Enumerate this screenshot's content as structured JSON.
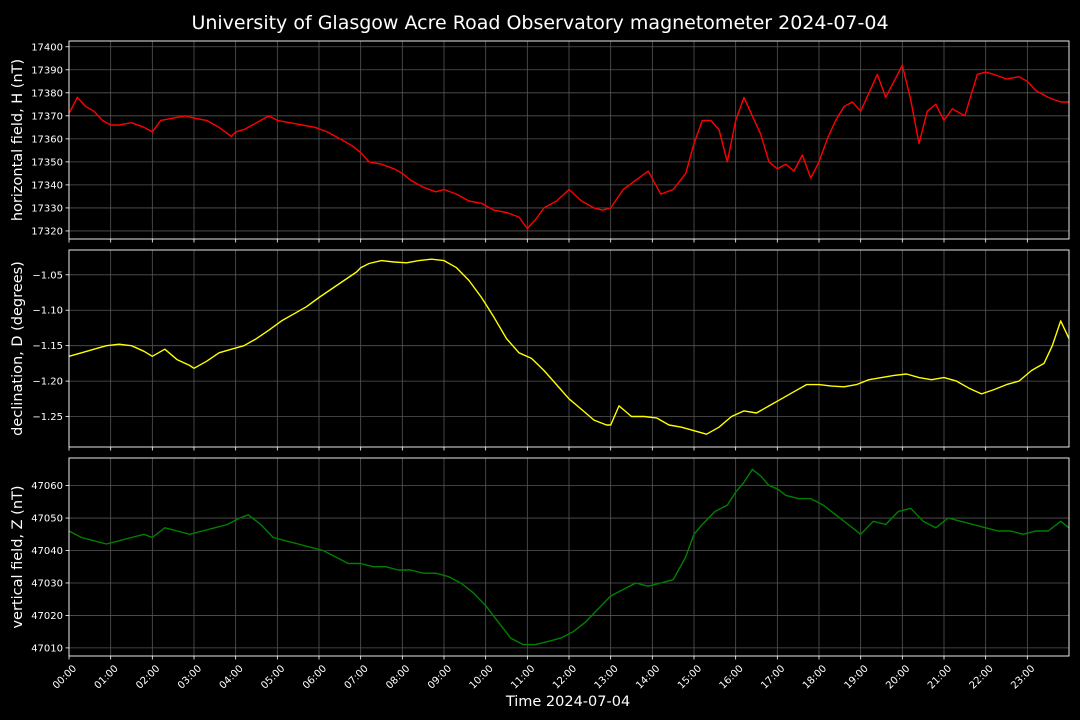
{
  "chart_data": {
    "type": "line",
    "title": "University of Glasgow Acre Road Observatory magnetometer 2024-07-04",
    "xlabel": "Time 2024-07-04",
    "x_ticks": [
      "00:00",
      "01:00",
      "02:00",
      "03:00",
      "04:00",
      "05:00",
      "06:00",
      "07:00",
      "08:00",
      "09:00",
      "10:00",
      "11:00",
      "12:00",
      "13:00",
      "14:00",
      "15:00",
      "16:00",
      "17:00",
      "18:00",
      "19:00",
      "20:00",
      "21:00",
      "22:00",
      "23:00"
    ],
    "xlim": [
      0,
      24
    ],
    "grid": true,
    "panels": [
      {
        "name": "horizontal field, H (nT)",
        "ylabel": "horizontal field, H (nT)",
        "color": "#ff0000",
        "ylim": [
          17316.5,
          17402.5
        ],
        "yticks": [
          17320,
          17330,
          17340,
          17350,
          17360,
          17370,
          17380,
          17390,
          17400
        ],
        "tick_labels": [
          "17320",
          "17330",
          "17340",
          "17350",
          "17360",
          "17370",
          "17380",
          "17390",
          "17400"
        ],
        "x": [
          0,
          0.2,
          0.4,
          0.6,
          0.8,
          1.0,
          1.2,
          1.5,
          1.8,
          2.0,
          2.2,
          2.5,
          2.8,
          3.0,
          3.3,
          3.6,
          3.9,
          4.0,
          4.2,
          4.5,
          4.8,
          5.0,
          5.3,
          5.6,
          5.9,
          6.2,
          6.5,
          6.8,
          7.0,
          7.2,
          7.5,
          7.8,
          8.0,
          8.2,
          8.5,
          8.8,
          9.0,
          9.3,
          9.6,
          9.9,
          10.2,
          10.5,
          10.8,
          11.0,
          11.2,
          11.4,
          11.7,
          12.0,
          12.3,
          12.6,
          12.8,
          13.0,
          13.3,
          13.6,
          13.9,
          14.2,
          14.5,
          14.8,
          15.0,
          15.2,
          15.4,
          15.6,
          15.8,
          16.0,
          16.2,
          16.4,
          16.6,
          16.8,
          17.0,
          17.2,
          17.4,
          17.6,
          17.8,
          18.0,
          18.2,
          18.4,
          18.6,
          18.8,
          19.0,
          19.2,
          19.4,
          19.6,
          19.8,
          20.0,
          20.2,
          20.4,
          20.6,
          20.8,
          21.0,
          21.2,
          21.5,
          21.8,
          22.0,
          22.2,
          22.5,
          22.8,
          23.0,
          23.2,
          23.5,
          23.8,
          24.0
        ],
        "y": [
          17371,
          17378,
          17374,
          17372,
          17368,
          17366,
          17366,
          17367,
          17365,
          17363,
          17368,
          17369,
          17370,
          17369,
          17368,
          17365,
          17361,
          17363,
          17364,
          17367,
          17370,
          17368,
          17367,
          17366,
          17365,
          17363,
          17360,
          17357,
          17354,
          17350,
          17349,
          17347,
          17345,
          17342,
          17339,
          17337,
          17338,
          17336,
          17333,
          17332,
          17329,
          17328,
          17326,
          17321,
          17325,
          17330,
          17333,
          17338,
          17333,
          17330,
          17329,
          17330,
          17338,
          17342,
          17346,
          17336,
          17338,
          17345,
          17358,
          17368,
          17368,
          17364,
          17350,
          17368,
          17378,
          17370,
          17362,
          17350,
          17347,
          17349,
          17346,
          17353,
          17343,
          17350,
          17360,
          17368,
          17374,
          17376,
          17372,
          17380,
          17388,
          17378,
          17385,
          17392,
          17377,
          17358,
          17372,
          17375,
          17368,
          17373,
          17370,
          17388,
          17389,
          17388,
          17386,
          17387,
          17385,
          17381,
          17378,
          17376,
          17376
        ]
      },
      {
        "name": "declination, D (degrees)",
        "ylabel": "declination, D (degrees)",
        "color": "#ffff00",
        "ylim": [
          -1.293,
          -1.015
        ],
        "yticks": [
          -1.25,
          -1.2,
          -1.15,
          -1.1,
          -1.05
        ],
        "tick_labels": [
          "−1.25",
          "−1.20",
          "−1.15",
          "−1.10",
          "−1.05"
        ],
        "x": [
          0,
          0.3,
          0.6,
          0.9,
          1.2,
          1.5,
          1.8,
          2.0,
          2.3,
          2.6,
          2.9,
          3.0,
          3.3,
          3.6,
          3.9,
          4.2,
          4.5,
          4.8,
          5.1,
          5.4,
          5.7,
          6.0,
          6.3,
          6.6,
          6.9,
          7.0,
          7.2,
          7.5,
          7.8,
          8.1,
          8.4,
          8.7,
          9.0,
          9.3,
          9.6,
          9.9,
          10.2,
          10.5,
          10.8,
          11.1,
          11.4,
          11.7,
          12.0,
          12.3,
          12.6,
          12.9,
          13.0,
          13.2,
          13.5,
          13.8,
          14.1,
          14.4,
          14.7,
          15.0,
          15.3,
          15.6,
          15.9,
          16.2,
          16.5,
          16.8,
          17.1,
          17.4,
          17.7,
          18.0,
          18.3,
          18.6,
          18.9,
          19.2,
          19.5,
          19.8,
          20.1,
          20.4,
          20.7,
          21.0,
          21.3,
          21.6,
          21.9,
          22.2,
          22.5,
          22.8,
          23.1,
          23.4,
          23.6,
          23.8,
          24.0
        ],
        "y": [
          -1.165,
          -1.16,
          -1.155,
          -1.15,
          -1.148,
          -1.15,
          -1.158,
          -1.165,
          -1.155,
          -1.17,
          -1.178,
          -1.182,
          -1.172,
          -1.16,
          -1.155,
          -1.15,
          -1.14,
          -1.128,
          -1.115,
          -1.105,
          -1.095,
          -1.082,
          -1.07,
          -1.058,
          -1.046,
          -1.04,
          -1.034,
          -1.03,
          -1.032,
          -1.033,
          -1.03,
          -1.028,
          -1.03,
          -1.04,
          -1.058,
          -1.082,
          -1.11,
          -1.14,
          -1.16,
          -1.168,
          -1.185,
          -1.205,
          -1.225,
          -1.24,
          -1.255,
          -1.262,
          -1.262,
          -1.235,
          -1.25,
          -1.25,
          -1.252,
          -1.262,
          -1.265,
          -1.27,
          -1.275,
          -1.265,
          -1.25,
          -1.242,
          -1.245,
          -1.235,
          -1.225,
          -1.215,
          -1.205,
          -1.205,
          -1.207,
          -1.208,
          -1.205,
          -1.198,
          -1.195,
          -1.192,
          -1.19,
          -1.195,
          -1.198,
          -1.195,
          -1.2,
          -1.21,
          -1.218,
          -1.212,
          -1.205,
          -1.2,
          -1.185,
          -1.175,
          -1.15,
          -1.115,
          -1.14
        ]
      },
      {
        "name": "vertical field, Z (nT)",
        "ylabel": "vertical field, Z (nT)",
        "color": "#008000",
        "ylim": [
          47007.5,
          47068.5
        ],
        "yticks": [
          47010,
          47020,
          47030,
          47040,
          47050,
          47060
        ],
        "tick_labels": [
          "47010",
          "47020",
          "47030",
          "47040",
          "47050",
          "47060"
        ],
        "x": [
          0,
          0.3,
          0.6,
          0.9,
          1.2,
          1.5,
          1.8,
          2.0,
          2.3,
          2.6,
          2.9,
          3.2,
          3.5,
          3.8,
          4.1,
          4.3,
          4.6,
          4.9,
          5.2,
          5.5,
          5.8,
          6.1,
          6.4,
          6.7,
          7.0,
          7.3,
          7.6,
          7.9,
          8.2,
          8.5,
          8.8,
          9.1,
          9.4,
          9.7,
          10.0,
          10.3,
          10.6,
          10.9,
          11.2,
          11.5,
          11.8,
          12.1,
          12.4,
          12.7,
          13.0,
          13.3,
          13.6,
          13.9,
          14.2,
          14.5,
          14.8,
          15.0,
          15.2,
          15.5,
          15.8,
          16.0,
          16.2,
          16.4,
          16.6,
          16.8,
          17.0,
          17.2,
          17.5,
          17.8,
          18.1,
          18.4,
          18.7,
          19.0,
          19.3,
          19.6,
          19.9,
          20.2,
          20.5,
          20.8,
          21.1,
          21.4,
          21.7,
          22.0,
          22.3,
          22.6,
          22.9,
          23.2,
          23.5,
          23.8,
          24.0
        ],
        "y": [
          47046,
          47044,
          47043,
          47042,
          47043,
          47044,
          47045,
          47044,
          47047,
          47046,
          47045,
          47046,
          47047,
          47048,
          47050,
          47051,
          47048,
          47044,
          47043,
          47042,
          47041,
          47040,
          47038,
          47036,
          47036,
          47035,
          47035,
          47034,
          47034,
          47033,
          47033,
          47032,
          47030,
          47027,
          47023,
          47018,
          47013,
          47011,
          47011,
          47012,
          47013,
          47015,
          47018,
          47022,
          47026,
          47028,
          47030,
          47029,
          47030,
          47031,
          47038,
          47045,
          47048,
          47052,
          47054,
          47058,
          47061,
          47065,
          47063,
          47060,
          47059,
          47057,
          47056,
          47056,
          47054,
          47051,
          47048,
          47045,
          47049,
          47048,
          47052,
          47053,
          47049,
          47047,
          47050,
          47049,
          47048,
          47047,
          47046,
          47046,
          47045,
          47046,
          47046,
          47049,
          47047
        ]
      }
    ]
  }
}
